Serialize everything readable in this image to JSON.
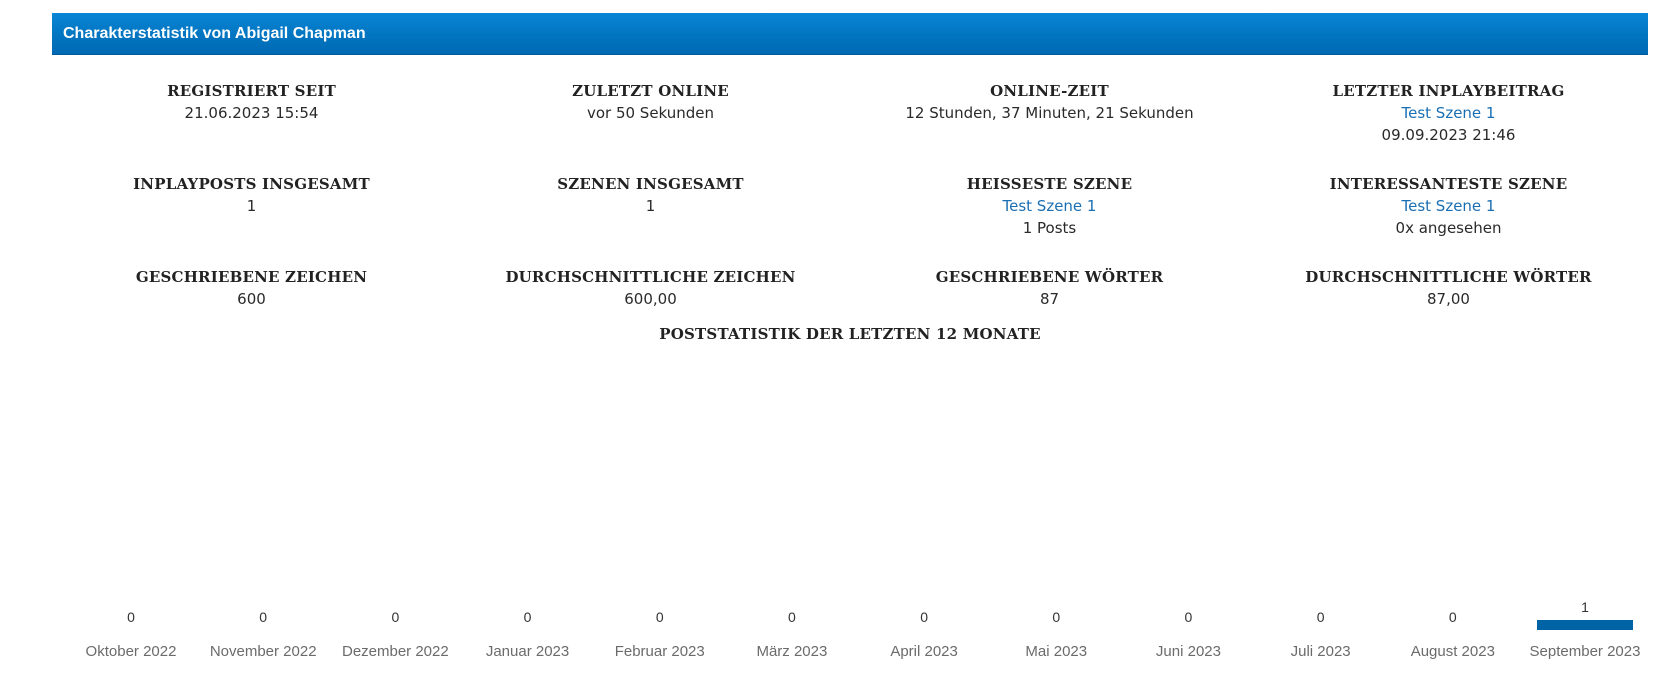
{
  "header": {
    "title": "Charakterstatistik von Abigail Chapman"
  },
  "stats": [
    {
      "id": "registered",
      "label": "REGISTRIERT SEIT",
      "value": "21.06.2023 15:54"
    },
    {
      "id": "last-online",
      "label": "ZULETZT ONLINE",
      "value": "vor 50 Sekunden"
    },
    {
      "id": "online-time",
      "label": "ONLINE-ZEIT",
      "value": "12 Stunden, 37 Minuten, 21 Sekunden"
    },
    {
      "id": "last-inplay-post",
      "label": "LETZTER INPLAYBEITRAG",
      "link": "Test Szene 1",
      "value": "09.09.2023 21:46"
    },
    {
      "id": "inplay-posts-total",
      "label": "INPLAYPOSTS INSGESAMT",
      "value": "1"
    },
    {
      "id": "scenes-total",
      "label": "SZENEN INSGESAMT",
      "value": "1"
    },
    {
      "id": "hottest-scene",
      "label": "HEISSESTE SZENE",
      "link": "Test Szene 1",
      "value": "1 Posts"
    },
    {
      "id": "most-interesting-scene",
      "label": "INTERESSANTESTE SZENE",
      "link": "Test Szene 1",
      "value": "0x angesehen"
    },
    {
      "id": "characters-written",
      "label": "GESCHRIEBENE ZEICHEN",
      "value": "600"
    },
    {
      "id": "characters-average",
      "label": "DURCHSCHNITTLICHE ZEICHEN",
      "value": "600,00"
    },
    {
      "id": "words-written",
      "label": "GESCHRIEBENE WÖRTER",
      "value": "87"
    },
    {
      "id": "words-average",
      "label": "DURCHSCHNITTLICHE WÖRTER",
      "value": "87,00"
    }
  ],
  "chart_title": "POSTSTATISTIK DER LETZTEN 12 MONATE",
  "chart_data": {
    "type": "bar",
    "title": "POSTSTATISTIK DER LETZTEN 12 MONATE",
    "categories": [
      "Oktober 2022",
      "November 2022",
      "Dezember 2022",
      "Januar 2023",
      "Februar 2023",
      "März 2023",
      "April 2023",
      "Mai 2023",
      "Juni 2023",
      "Juli 2023",
      "August 2023",
      "September 2023"
    ],
    "values": [
      0,
      0,
      0,
      0,
      0,
      0,
      0,
      0,
      0,
      0,
      0,
      1
    ],
    "ylim": [
      0,
      25
    ],
    "grid": false,
    "legend": "none",
    "bar_color": "#0063a5",
    "value_labels": true
  }
}
